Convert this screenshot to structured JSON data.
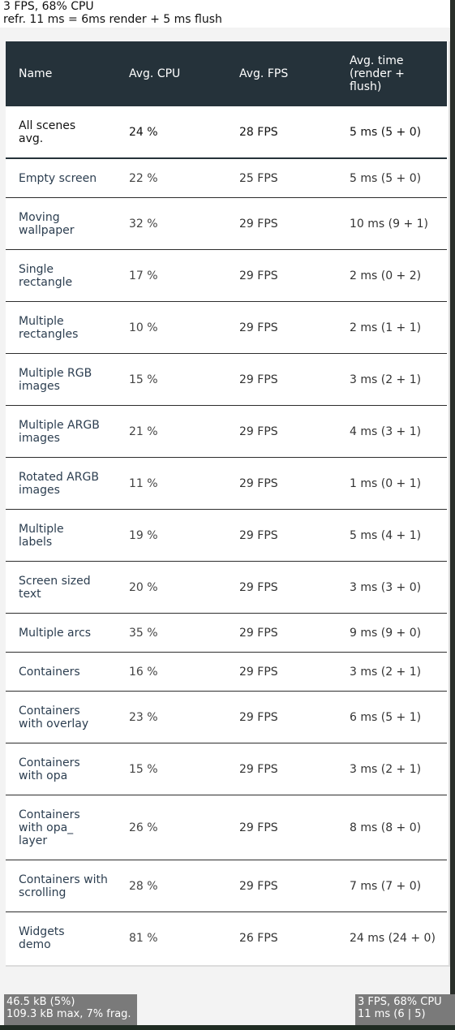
{
  "top_overlay": {
    "line1": "3 FPS, 68% CPU",
    "line2": "refr. 11 ms = 6ms render + 5 ms flush"
  },
  "table": {
    "headers": [
      "Name",
      "Avg. CPU",
      "Avg. FPS",
      "Avg. time (render + flush)"
    ],
    "summary": {
      "name": "All scenes avg.",
      "cpu": "24 %",
      "fps": "28 FPS",
      "time": "5 ms (5 + 0)"
    },
    "rows": [
      {
        "name": "Empty screen",
        "cpu": "22 %",
        "fps": "25 FPS",
        "time": "5 ms (5 + 0)"
      },
      {
        "name": "Moving wallpaper",
        "cpu": "32 %",
        "fps": "29 FPS",
        "time": "10 ms (9 + 1)"
      },
      {
        "name": "Single rectangle",
        "cpu": "17 %",
        "fps": "29 FPS",
        "time": "2 ms (0 + 2)"
      },
      {
        "name": "Multiple rectangles",
        "cpu": "10 %",
        "fps": "29 FPS",
        "time": "2 ms (1 + 1)"
      },
      {
        "name": "Multiple RGB images",
        "cpu": "15 %",
        "fps": "29 FPS",
        "time": "3 ms (2 + 1)"
      },
      {
        "name": "Multiple ARGB images",
        "cpu": "21 %",
        "fps": "29 FPS",
        "time": "4 ms (3 + 1)"
      },
      {
        "name": "Rotated ARGB images",
        "cpu": "11 %",
        "fps": "29 FPS",
        "time": "1 ms (0 + 1)"
      },
      {
        "name": "Multiple labels",
        "cpu": "19 %",
        "fps": "29 FPS",
        "time": "5 ms (4 + 1)"
      },
      {
        "name": "Screen sized text",
        "cpu": "20 %",
        "fps": "29 FPS",
        "time": "3 ms (3 + 0)"
      },
      {
        "name": "Multiple arcs",
        "cpu": "35 %",
        "fps": "29 FPS",
        "time": "9 ms (9 + 0)"
      },
      {
        "name": "Containers",
        "cpu": "16 %",
        "fps": "29 FPS",
        "time": "3 ms (2 + 1)"
      },
      {
        "name": "Containers with overlay",
        "cpu": "23 %",
        "fps": "29 FPS",
        "time": "6 ms (5 + 1)"
      },
      {
        "name": "Containers with opa",
        "cpu": "15 %",
        "fps": "29 FPS",
        "time": "3 ms (2 + 1)"
      },
      {
        "name": "Containers with opa_ layer",
        "cpu": "26 %",
        "fps": "29 FPS",
        "time": "8 ms (8 + 0)"
      },
      {
        "name": "Containers with scrolling",
        "cpu": "28 %",
        "fps": "29 FPS",
        "time": "7 ms (7 + 0)"
      },
      {
        "name": "Widgets demo",
        "cpu": "81 %",
        "fps": "26 FPS",
        "time": "24 ms (24 + 0)"
      }
    ]
  },
  "mem_monitor": {
    "line1": "46.5 kB (5%)",
    "line2": "109.3 kB max, 7% frag."
  },
  "perf_monitor": {
    "line1": "3 FPS, 68% CPU",
    "line2": "11 ms (6 | 5)"
  }
}
